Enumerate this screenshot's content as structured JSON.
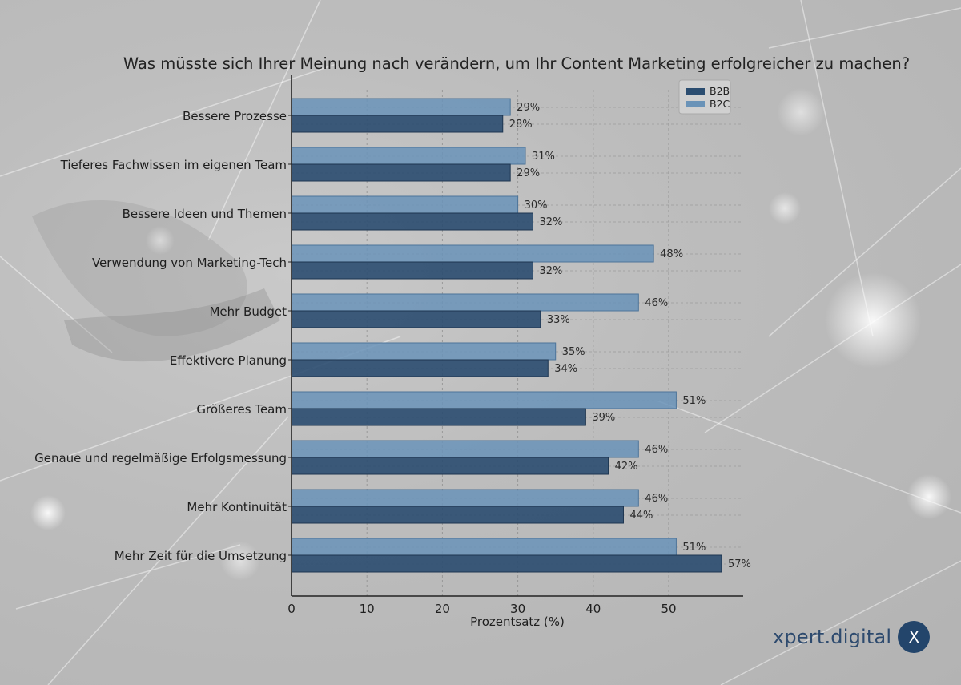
{
  "chart_data": {
    "type": "bar",
    "orientation": "horizontal",
    "title": "Was müsste sich Ihrer Meinung nach verändern, um Ihr Content Marketing erfolgreicher zu machen?",
    "xlabel": "Prozentsatz (%)",
    "ylabel": "",
    "xlim": [
      0,
      60
    ],
    "xticks": [
      0,
      10,
      20,
      30,
      40,
      50
    ],
    "grid": true,
    "legend_position": "top-right",
    "categories": [
      "Bessere Prozesse",
      "Tieferes Fachwissen im eigenen Team",
      "Bessere Ideen und Themen",
      "Verwendung von Marketing-Tech",
      "Mehr Budget",
      "Effektivere Planung",
      "Größeres Team",
      "Genaue und regelmäßige Erfolgsmessung",
      "Mehr Kontinuität",
      "Mehr Zeit für die Umsetzung"
    ],
    "series": [
      {
        "name": "B2B",
        "color": "#2b4d70",
        "values": [
          28,
          29,
          32,
          32,
          33,
          34,
          39,
          42,
          44,
          57
        ]
      },
      {
        "name": "B2C",
        "color": "#6a93b8",
        "values": [
          29,
          31,
          30,
          48,
          46,
          35,
          51,
          46,
          46,
          51
        ]
      }
    ],
    "value_suffix": "%"
  },
  "brand": {
    "name": "xpert.digital",
    "logo_letter": "X"
  }
}
